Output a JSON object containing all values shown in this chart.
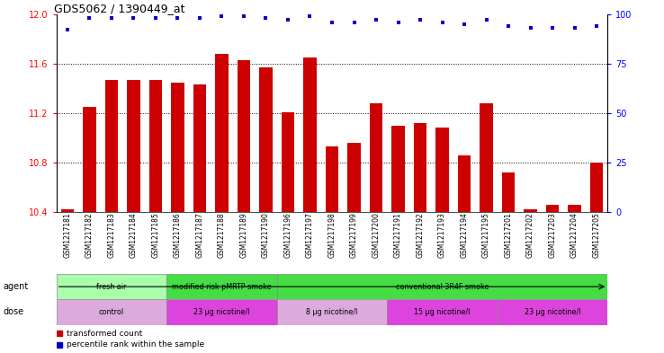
{
  "title": "GDS5062 / 1390449_at",
  "samples": [
    "GSM1217181",
    "GSM1217182",
    "GSM1217183",
    "GSM1217184",
    "GSM1217185",
    "GSM1217186",
    "GSM1217187",
    "GSM1217188",
    "GSM1217189",
    "GSM1217190",
    "GSM1217196",
    "GSM1217197",
    "GSM1217198",
    "GSM1217199",
    "GSM1217200",
    "GSM1217191",
    "GSM1217192",
    "GSM1217193",
    "GSM1217194",
    "GSM1217195",
    "GSM1217201",
    "GSM1217202",
    "GSM1217203",
    "GSM1217204",
    "GSM1217205"
  ],
  "bar_values": [
    10.42,
    11.25,
    11.47,
    11.47,
    11.47,
    11.45,
    11.43,
    11.68,
    11.63,
    11.57,
    11.21,
    11.65,
    10.93,
    10.96,
    11.28,
    11.1,
    11.12,
    11.08,
    10.86,
    11.28,
    10.72,
    10.42,
    10.46,
    10.46,
    10.8
  ],
  "percentile_values": [
    92,
    98,
    98,
    98,
    98,
    98,
    98,
    99,
    99,
    98,
    97,
    99,
    96,
    96,
    97,
    96,
    97,
    96,
    95,
    97,
    94,
    93,
    93,
    93,
    94
  ],
  "bar_color": "#cc0000",
  "dot_color": "#0000cc",
  "ylim_left": [
    10.4,
    12.0
  ],
  "ylim_right": [
    0,
    100
  ],
  "yticks_left": [
    10.4,
    10.8,
    11.2,
    11.6,
    12.0
  ],
  "yticks_right": [
    0,
    25,
    50,
    75,
    100
  ],
  "grid_lines": [
    10.8,
    11.2,
    11.6
  ],
  "agent_groups": [
    {
      "label": "fresh air",
      "start": 0,
      "end": 5,
      "color": "#aaffaa"
    },
    {
      "label": "modified risk pMRTP smoke",
      "start": 5,
      "end": 10,
      "color": "#44dd44"
    },
    {
      "label": "conventional 3R4F smoke",
      "start": 10,
      "end": 25,
      "color": "#44dd44"
    }
  ],
  "dose_groups": [
    {
      "label": "control",
      "start": 0,
      "end": 5,
      "color": "#ddaadd"
    },
    {
      "label": "23 μg nicotine/l",
      "start": 5,
      "end": 10,
      "color": "#dd44dd"
    },
    {
      "label": "8 μg nicotine/l",
      "start": 10,
      "end": 15,
      "color": "#ddaadd"
    },
    {
      "label": "15 μg nicotine/l",
      "start": 15,
      "end": 20,
      "color": "#dd44dd"
    },
    {
      "label": "23 μg nicotine/l",
      "start": 20,
      "end": 25,
      "color": "#dd44dd"
    }
  ],
  "legend_items": [
    {
      "label": "transformed count",
      "color": "#cc0000"
    },
    {
      "label": "percentile rank within the sample",
      "color": "#0000cc"
    }
  ],
  "agent_label": "agent",
  "dose_label": "dose",
  "bg_color": "#ffffff"
}
